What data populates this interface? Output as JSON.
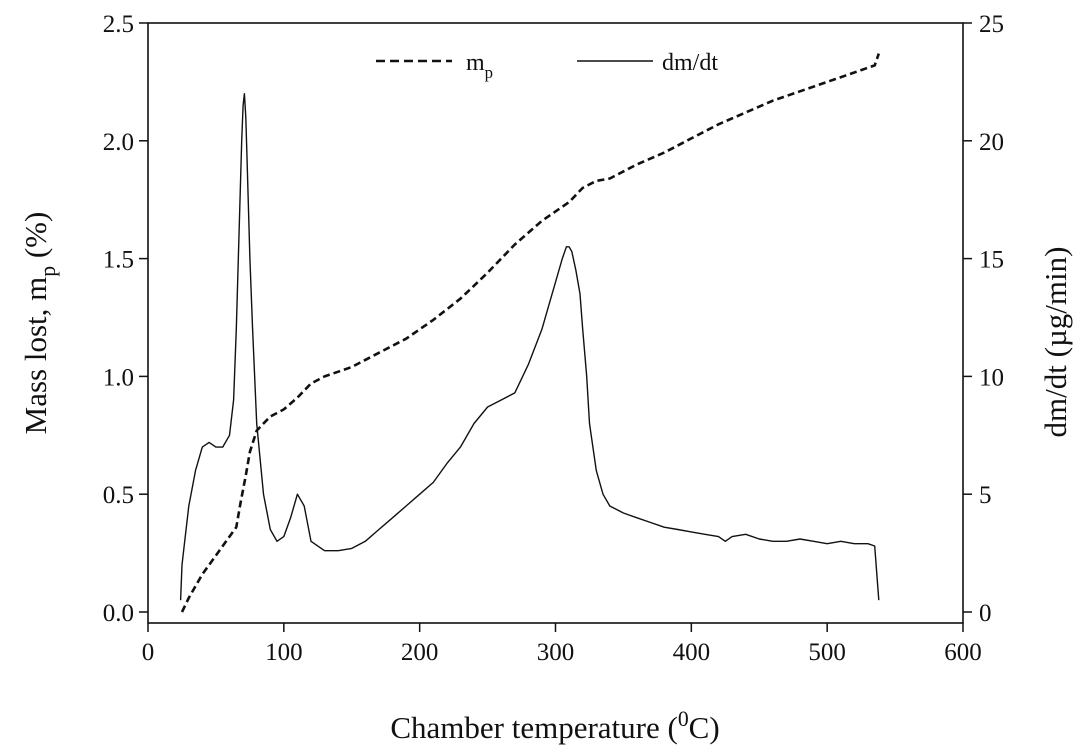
{
  "chart_data": {
    "type": "line",
    "xlabel": {
      "main": "Chamber temperature (",
      "sup": "0",
      "tail": "C)"
    },
    "ylabel_left": {
      "main": "Mass lost, m",
      "sub": "p",
      "tail": " (%)"
    },
    "ylabel_right": "dm/dt (µg/min)",
    "x_ticks": [
      "0",
      "100",
      "200",
      "300",
      "400",
      "500",
      "600"
    ],
    "y_left_ticks": [
      "0.0",
      "0.5",
      "1.0",
      "1.5",
      "2.0",
      "2.5"
    ],
    "y_right_ticks": [
      "0",
      "5",
      "10",
      "15",
      "20",
      "25"
    ],
    "xlim": [
      0,
      600
    ],
    "ylim_left": [
      0,
      2.5
    ],
    "ylim_right": [
      0,
      25
    ],
    "grid": false,
    "legend_position": "top-center",
    "legend": [
      {
        "main": "m",
        "sub": "p",
        "style": "dashed"
      },
      {
        "main": "dm/dt",
        "style": "solid"
      }
    ],
    "series": [
      {
        "name": "m_p",
        "axis": "left",
        "style": "dashed",
        "x": [
          25,
          30,
          40,
          50,
          60,
          65,
          68,
          72,
          75,
          80,
          85,
          90,
          100,
          110,
          120,
          130,
          150,
          170,
          190,
          210,
          230,
          250,
          270,
          290,
          310,
          320,
          330,
          340,
          360,
          380,
          400,
          420,
          440,
          460,
          480,
          500,
          520,
          535,
          538
        ],
        "y": [
          0.0,
          0.06,
          0.16,
          0.24,
          0.32,
          0.36,
          0.46,
          0.58,
          0.68,
          0.77,
          0.8,
          0.83,
          0.86,
          0.91,
          0.97,
          1.0,
          1.04,
          1.1,
          1.16,
          1.24,
          1.33,
          1.44,
          1.56,
          1.66,
          1.74,
          1.8,
          1.83,
          1.84,
          1.9,
          1.95,
          2.01,
          2.07,
          2.12,
          2.17,
          2.21,
          2.25,
          2.29,
          2.32,
          2.37
        ]
      },
      {
        "name": "dm/dt",
        "axis": "right",
        "style": "solid",
        "x": [
          24,
          25,
          27,
          30,
          35,
          40,
          45,
          50,
          55,
          60,
          63,
          65,
          67,
          69,
          70,
          71,
          72,
          73,
          75,
          77,
          80,
          85,
          90,
          95,
          100,
          105,
          110,
          115,
          120,
          130,
          140,
          150,
          160,
          170,
          180,
          190,
          200,
          210,
          220,
          230,
          240,
          250,
          260,
          270,
          280,
          290,
          295,
          300,
          305,
          308,
          310,
          312,
          315,
          318,
          320,
          323,
          325,
          330,
          335,
          340,
          350,
          360,
          370,
          380,
          390,
          400,
          410,
          420,
          425,
          430,
          440,
          450,
          460,
          470,
          480,
          490,
          500,
          510,
          520,
          530,
          535,
          538
        ],
        "y": [
          0.5,
          2.0,
          3.0,
          4.5,
          6.0,
          7.0,
          7.2,
          7.0,
          7.0,
          7.5,
          9.0,
          12.0,
          16.0,
          20.0,
          21.5,
          22.0,
          21.0,
          19.0,
          15.0,
          12.0,
          8.0,
          5.0,
          3.5,
          3.0,
          3.2,
          4.0,
          5.0,
          4.5,
          3.0,
          2.6,
          2.6,
          2.7,
          3.0,
          3.5,
          4.0,
          4.5,
          5.0,
          5.5,
          6.3,
          7.0,
          8.0,
          8.7,
          9.0,
          9.3,
          10.5,
          12.0,
          13.0,
          14.0,
          15.0,
          15.5,
          15.5,
          15.3,
          14.5,
          13.5,
          12.0,
          10.0,
          8.0,
          6.0,
          5.0,
          4.5,
          4.2,
          4.0,
          3.8,
          3.6,
          3.5,
          3.4,
          3.3,
          3.2,
          3.0,
          3.2,
          3.3,
          3.1,
          3.0,
          3.0,
          3.1,
          3.0,
          2.9,
          3.0,
          2.9,
          2.9,
          2.8,
          0.5
        ]
      }
    ]
  }
}
